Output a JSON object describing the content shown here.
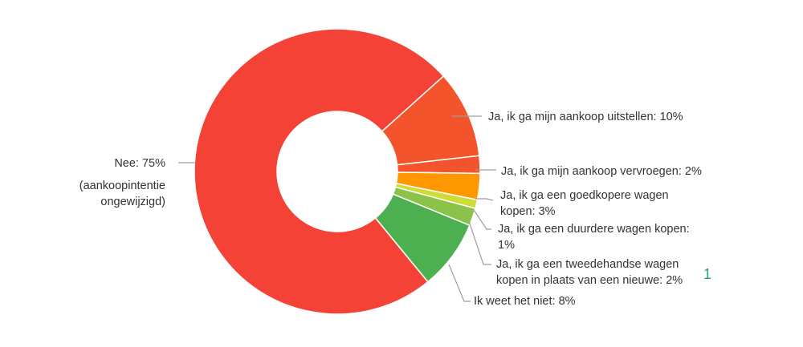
{
  "chart_data": {
    "type": "pie",
    "donut": true,
    "slices": [
      {
        "label": "Ja, ik ga mijn aankoop uitstellen",
        "value": 10,
        "display": [
          "Ja, ik ga mijn aankoop uitstellen: 10%"
        ],
        "color": "#f4542b"
      },
      {
        "label": "Ja, ik ga mijn aankoop vervroegen",
        "value": 2,
        "display": [
          "Ja, ik ga mijn aankoop vervroegen: 2%"
        ],
        "color": "#f4542b"
      },
      {
        "label": "Ja, ik ga een goedkopere wagen kopen",
        "value": 3,
        "display": [
          "Ja, ik ga een goedkopere wagen",
          "kopen: 3%"
        ],
        "color": "#ff9800"
      },
      {
        "label": "Ja, ik ga een duurdere wagen kopen",
        "value": 1,
        "display": [
          "Ja, ik ga een duurdere wagen kopen:",
          "1%"
        ],
        "color": "#cddc39"
      },
      {
        "label": "Ja, ik ga een tweedehandse wagen kopen in plaats van een nieuwe",
        "value": 2,
        "display": [
          "Ja, ik ga een tweedehandse wagen",
          "kopen in plaats van een nieuwe: 2%"
        ],
        "color": "#8bc34a"
      },
      {
        "label": "Ik weet het niet",
        "value": 8,
        "display": [
          "Ik weet het niet: 8%"
        ],
        "color": "#4caf50"
      },
      {
        "label": "Nee",
        "value": 75,
        "display": [
          "Nee: 75%",
          "(aankoopintentie",
          "ongewijzigd)"
        ],
        "color": "#f44336"
      }
    ]
  },
  "stray_text": "1"
}
